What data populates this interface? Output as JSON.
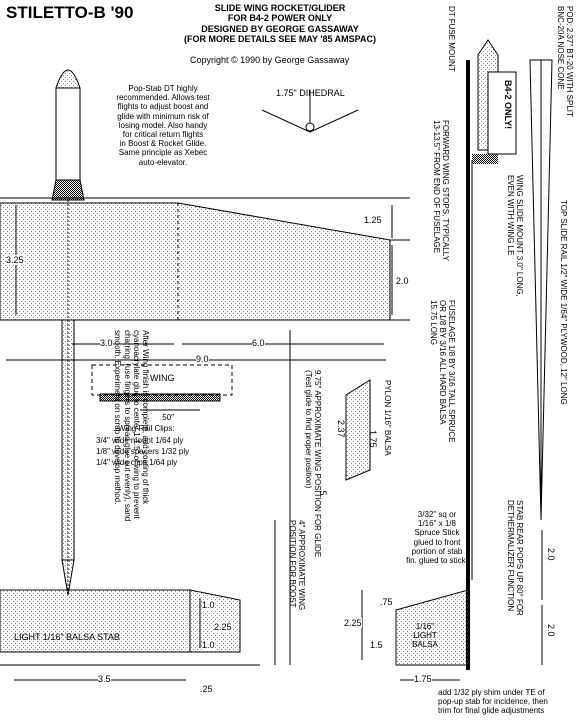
{
  "title": "STILETTO-B '90",
  "header": {
    "lines": [
      "SLIDE WING ROCKET/GLIDER",
      "FOR B4-2 POWER ONLY",
      "DESIGNED BY GEORGE GASSAWAY",
      "(FOR MORE DETAILS SEE MAY '85 AMSPAC)"
    ],
    "copyright": "Copyright © 1990 by George Gassaway"
  },
  "notes": {
    "popstab": [
      "Pop-Stab DT highly",
      "recommended. Allows test",
      "flights to adjust boost and",
      "glide with minimum risk of",
      "losing model. Also handy",
      "for critical return flights",
      "in Boost & Rocket Glide.",
      "Same principle as Xebec",
      "auto-elevator."
    ],
    "dihedral": "1.75\" DIHEDRAL",
    "wing_stops": [
      "FORWARD WING STOPS, TYPICALLY",
      "13-13.5\" FROM END OF FUSELAGE"
    ],
    "wing_slide_mount": [
      "WING SLIDE MOUNT 3.0\" LONG,",
      "EVEN WITH WING LE"
    ],
    "fuselage": [
      "FUSELAGE 1/8 BY 3/16 TALL SPRUCE",
      "OR 1/8 BY 3/16 ALL HARD BALSA",
      "15.75 LONG"
    ],
    "dt_fuse_mount": "DT FUSE MOUNT",
    "pod": [
      "POD: 2.37\" BT-20 WITH SPLIT",
      "BNC-20A NOSE CONE"
    ],
    "b4_only": "B4-2 ONLY!",
    "top_slide_rail": "TOP SLIDE RAIL 1/2\" WIDE 1/64\" PLYWOOD, 12\" LONG",
    "stab_rear": [
      "STAB REAR POPS UP 80° FOR",
      "DETHERMALIZER FUNCTION"
    ],
    "after_wing": [
      "After Wing finish is complete, add coating of thick",
      "cyanoacrylate glue to center 1-1.5\" of wing to prevent",
      "charring. (use fingers to spread glue out evenly), sand",
      "smooth. Experiment on scrap to develop method."
    ],
    "wing_pos_glide": [
      "9.75\" APPROXIMATE WING POSITION FOR GLIDE",
      "(Test glide to find proper position)"
    ],
    "wing_pos_boost": [
      "4\" APPROXIMATE WING",
      "POSITION FOR BOOST"
    ],
    "pylon": "PYLON 1/16\" BALSA",
    "spruce_stick": [
      "3/32\" sq or",
      "1/16\" x 1/8",
      "Spruce Stick",
      "glued to front",
      "portion of stab",
      "fin. glued to stick."
    ],
    "stab_label": "LIGHT 1/16\" BALSA STAB",
    "fin_label": [
      "1/16\"",
      "LIGHT",
      "BALSA"
    ],
    "shim": [
      "add 1/32 ply shim under TE of",
      "pop-up stab for incidence, then",
      "trim for final glide adjustments"
    ],
    "wing_rail": {
      "wing": "WING",
      "spacing": ".50\"",
      "heading": "Wing Rail Clips:",
      "items": [
        "3/4\" wide mount 1/64 ply",
        "1/8\" wide spacers 1/32 ply",
        "1/4\" wide clips 1/64 ply"
      ]
    }
  },
  "dims": {
    "d125": "1.25",
    "d325": "3.25",
    "d20": "2.0",
    "d30": "3.0",
    "d60": "6.0",
    "d90": "9.0",
    "d237": "2.37",
    "d175": "1.75",
    "d5": ".5",
    "d10a": "1.0",
    "d10b": "1.0",
    "d225a": "2.25",
    "d35": "3.5",
    "d25": ".25",
    "d75": ".75",
    "d225b": "2.25",
    "d15": "1.5",
    "d175b": "1.75",
    "d20b": "2.0",
    "d20c": "2.0"
  },
  "colors": {
    "ink": "#000000",
    "paper": "#ffffff",
    "stipple": "#9a9a9a"
  }
}
